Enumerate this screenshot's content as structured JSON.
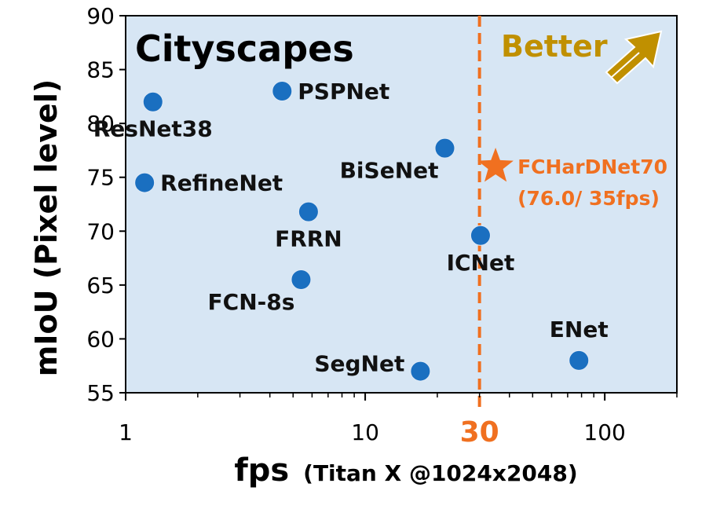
{
  "chart_data": {
    "type": "scatter",
    "title": "Cityscapes",
    "xlabel": "fps",
    "xlabel_note": "(Titan X @1024x2048)",
    "ylabel": "mIoU (Pixel level)",
    "xscale": "log",
    "xlim": [
      1,
      200
    ],
    "ylim": [
      55,
      90
    ],
    "xticks": [
      1,
      10,
      100
    ],
    "xtick_labels": [
      "1",
      "10",
      "100"
    ],
    "yticks": [
      55,
      60,
      65,
      70,
      75,
      80,
      85,
      90
    ],
    "ytick_labels": [
      "55",
      "60",
      "65",
      "70",
      "75",
      "80",
      "85",
      "90"
    ],
    "reference_line": {
      "x": 30,
      "label": "30",
      "color": "#f07020",
      "style": "dashed"
    },
    "annotation": {
      "text": "Better",
      "color": "#c09000",
      "direction": "top-right"
    },
    "points": [
      {
        "name": "ResNet38",
        "x": 1.3,
        "y": 82.0,
        "label_pos": "below"
      },
      {
        "name": "PSPNet",
        "x": 4.5,
        "y": 83.0,
        "label_pos": "right"
      },
      {
        "name": "RefineNet",
        "x": 1.2,
        "y": 74.5,
        "label_pos": "right"
      },
      {
        "name": "BiSeNet",
        "x": 21.5,
        "y": 77.7,
        "label_pos": "below-left"
      },
      {
        "name": "FRRN",
        "x": 5.8,
        "y": 71.8,
        "label_pos": "below"
      },
      {
        "name": "ICNet",
        "x": 30.3,
        "y": 69.6,
        "label_pos": "below"
      },
      {
        "name": "FCN-8s",
        "x": 5.4,
        "y": 65.5,
        "label_pos": "below-left"
      },
      {
        "name": "SegNet",
        "x": 17.0,
        "y": 57.0,
        "label_pos": "left"
      },
      {
        "name": "ENet",
        "x": 78.0,
        "y": 58.0,
        "label_pos": "above"
      }
    ],
    "highlight": {
      "name": "FCHarDNet70",
      "x": 35.0,
      "y": 76.0,
      "label": "FCHarDNet70",
      "sublabel": "(76.0/ 35fps)",
      "color": "#f07020",
      "marker": "star"
    },
    "colors": {
      "point": "#1a6fc0",
      "plot_bg": "#d7e6f4",
      "axis": "#000000"
    }
  }
}
